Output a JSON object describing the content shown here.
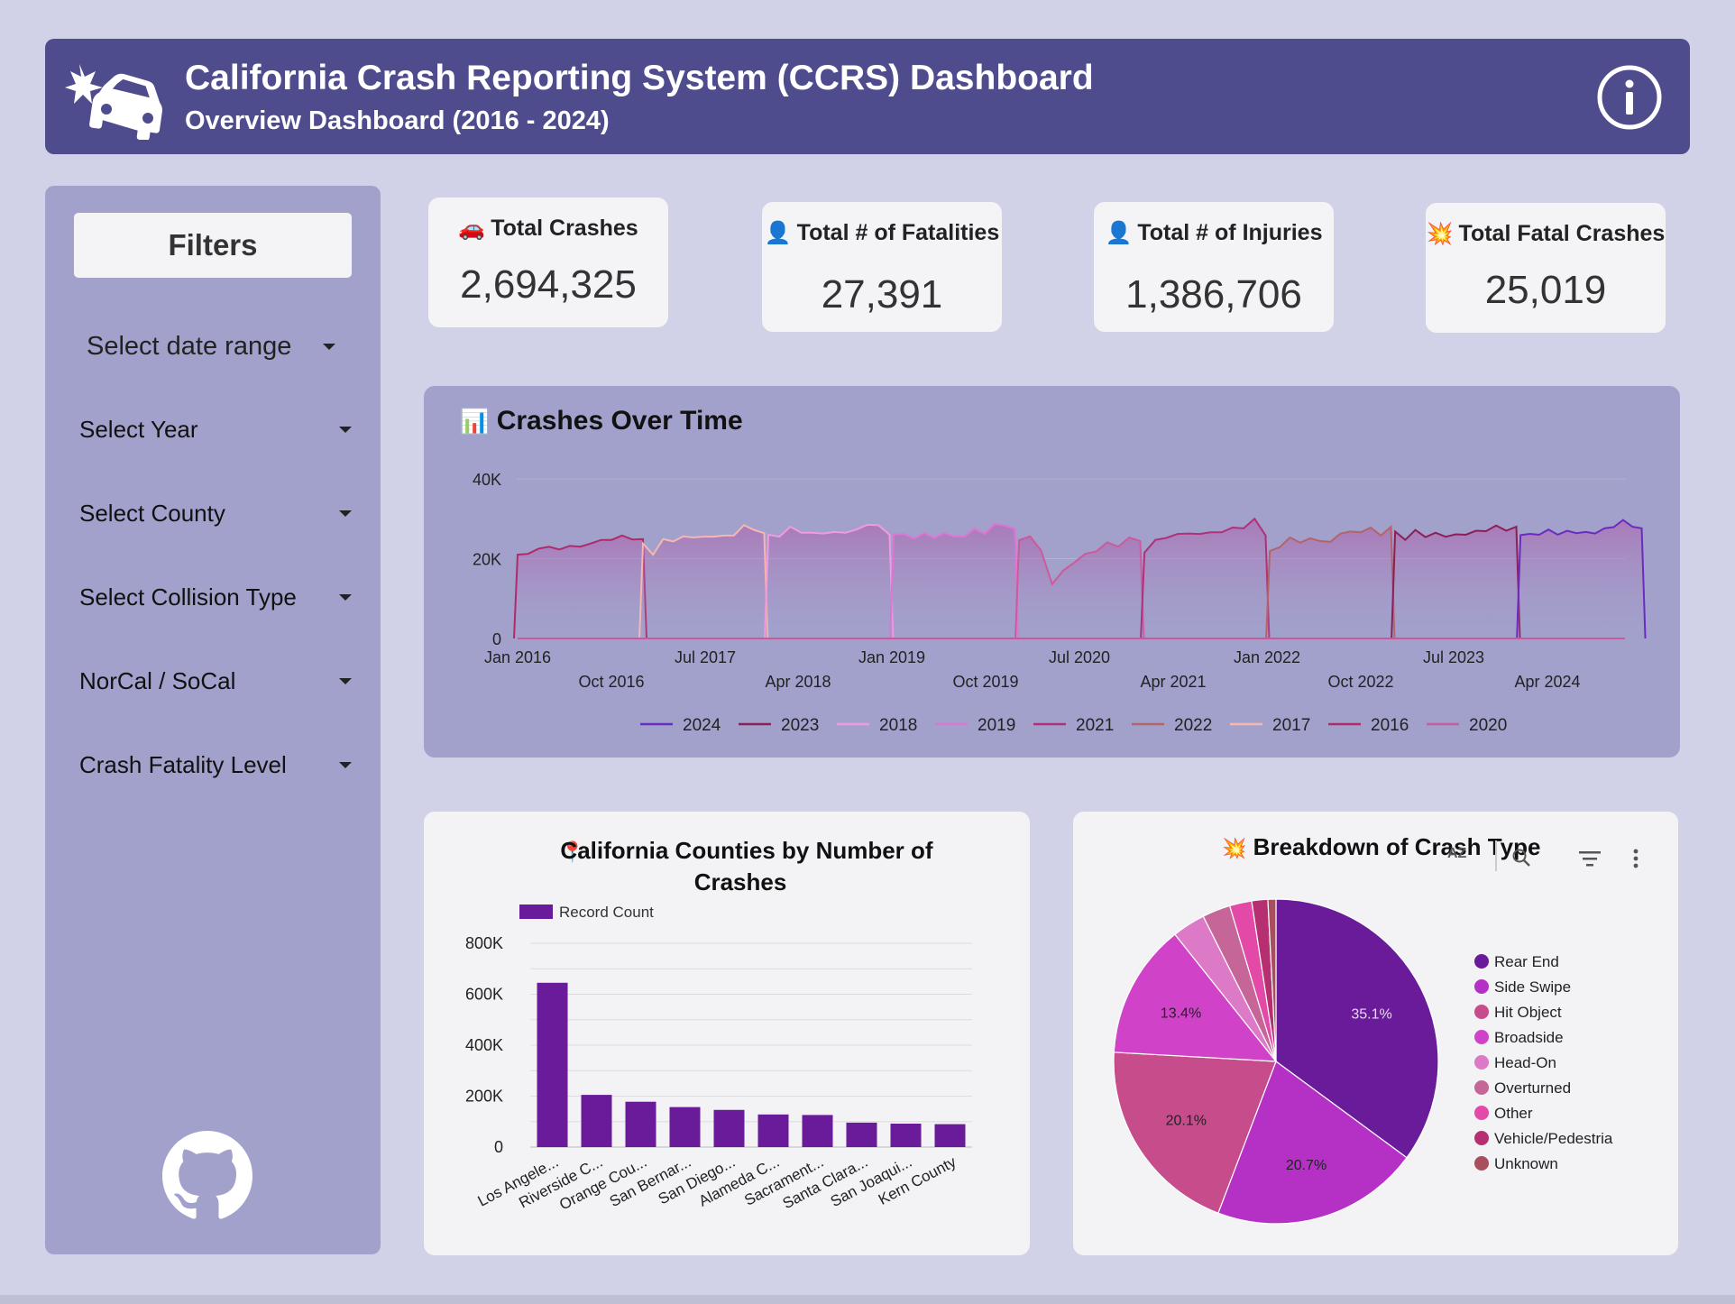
{
  "header": {
    "title": "California Crash Reporting System (CCRS) Dashboard",
    "subtitle": "Overview Dashboard (2016 - 2024)",
    "logo_icon": "car-crash-icon",
    "info_icon": "info-icon"
  },
  "sidebar": {
    "title": "Filters",
    "date_range": "Select date range",
    "filters": [
      "Select Year",
      "Select County",
      "Select Collision Type",
      "NorCal / SoCal",
      "Crash Fatality Level"
    ],
    "footer_icon": "github-icon"
  },
  "kpis": [
    {
      "emoji": "🚗",
      "label": "Total Crashes",
      "value": "2,694,325"
    },
    {
      "emoji": "👤",
      "label": "Total # of Fatalities",
      "value": "27,391"
    },
    {
      "emoji": "👤",
      "label": "Total # of Injuries",
      "value": "1,386,706"
    },
    {
      "emoji": "💥",
      "label": "Total Fatal Crashes",
      "value": "25,019"
    }
  ],
  "colors": {
    "header_bg": "#4f4c8e",
    "page_bg": "#d1d1e8",
    "panel_bg": "#a2a1cc",
    "bar": "#6a1b9a"
  },
  "chart_data": [
    {
      "type": "line",
      "title": "Crashes Over Time",
      "title_emoji": "📊",
      "ylim": [
        0,
        40000
      ],
      "y_ticks": [
        "0",
        "20K",
        "40K"
      ],
      "x_ticks_upper": [
        "Jan 2016",
        "Jul 2017",
        "Jan 2019",
        "Jul 2020",
        "Jan 2022",
        "Jul 2023"
      ],
      "x_ticks_lower": [
        "Oct 2016",
        "Apr 2018",
        "Oct 2019",
        "Apr 2021",
        "Oct 2022",
        "Apr 2024"
      ],
      "grid": true,
      "legend_position": "bottom",
      "series": [
        {
          "name": "2016",
          "color": "#b02a6a",
          "values": [
            21000,
            21200,
            22500,
            23000,
            22300,
            23200,
            23000,
            23800,
            24700,
            24700,
            25800,
            24800,
            24900
          ]
        },
        {
          "name": "2017",
          "color": "#f5b7b0",
          "values": [
            23800,
            21000,
            24900,
            24300,
            25600,
            25300,
            25500,
            25500,
            25800,
            25800,
            28400,
            27200,
            26400
          ]
        },
        {
          "name": "2018",
          "color": "#f09ae0",
          "values": [
            26000,
            25500,
            28000,
            26500,
            26500,
            26300,
            26700,
            26500,
            27300,
            28500,
            28400,
            26000
          ]
        },
        {
          "name": "2019",
          "color": "#de75d3",
          "values": [
            26000,
            26200,
            25000,
            26400,
            25200,
            26400,
            25500,
            25600,
            27500,
            26200,
            28700,
            28300,
            27500
          ]
        },
        {
          "name": "2020",
          "color": "#cc5a9c",
          "values": [
            24600,
            25600,
            22000,
            13600,
            17000,
            19000,
            21200,
            21800,
            24100,
            23000,
            25300,
            24400
          ]
        },
        {
          "name": "2021",
          "color": "#b0307a",
          "values": [
            21500,
            24700,
            25200,
            26200,
            26300,
            26200,
            26600,
            26600,
            27800,
            27600,
            30000,
            25800
          ]
        },
        {
          "name": "2022",
          "color": "#b26468",
          "values": [
            21900,
            22900,
            25300,
            24000,
            25100,
            24400,
            24200,
            26300,
            26800,
            26600,
            27800,
            25800,
            28000
          ]
        },
        {
          "name": "2023",
          "color": "#8c1f56",
          "values": [
            26800,
            24700,
            27200,
            25400,
            26500,
            25500,
            26100,
            26000,
            27000,
            26900,
            28300,
            27000,
            28000
          ]
        },
        {
          "name": "2024",
          "color": "#6a2cc0",
          "values": [
            25900,
            26200,
            26000,
            27300,
            26000,
            27000,
            26400,
            26700,
            26300,
            27600,
            27900,
            29700,
            28000,
            27600
          ]
        }
      ]
    },
    {
      "type": "bar",
      "title_emoji": "📍",
      "title_line1": "California Counties by Number of",
      "title_line2": "Crashes",
      "legend": "Record Count",
      "ylim": [
        0,
        800000
      ],
      "y_ticks": [
        "0",
        "200K",
        "400K",
        "600K",
        "800K"
      ],
      "categories": [
        "Los Angele...",
        "Riverside C...",
        "Orange Cou...",
        "San Bernar...",
        "San Diego...",
        "Alameda C...",
        "Sacrament...",
        "Santa Clara...",
        "San Joaqui...",
        "Kern County"
      ],
      "values": [
        645000,
        205000,
        178000,
        157000,
        146000,
        128000,
        126000,
        96000,
        92000,
        90000
      ]
    },
    {
      "type": "pie",
      "title_emoji": "💥",
      "title": "Breakdown of Crash Type",
      "legend_position": "right",
      "slices": [
        {
          "name": "Rear End",
          "value": 35.1,
          "label": "35.1%",
          "color": "#6a1b9a"
        },
        {
          "name": "Side Swipe",
          "value": 20.7,
          "label": "20.7%",
          "color": "#b530c4"
        },
        {
          "name": "Hit Object",
          "value": 20.1,
          "label": "20.1%",
          "color": "#c64c8c"
        },
        {
          "name": "Broadside",
          "value": 13.4,
          "label": "13.4%",
          "color": "#d043c8"
        },
        {
          "name": "Head-On",
          "value": 3.3,
          "label": "",
          "color": "#dd7ac7"
        },
        {
          "name": "Overturned",
          "value": 2.8,
          "label": "",
          "color": "#c66698"
        },
        {
          "name": "Other",
          "value": 2.2,
          "label": "",
          "color": "#e34aa8"
        },
        {
          "name": "Vehicle/Pedestria",
          "value": 1.6,
          "label": "",
          "color": "#b62f71"
        },
        {
          "name": "Unknown",
          "value": 0.8,
          "label": "",
          "color": "#a84e5d"
        }
      ],
      "toolbar": {
        "sort_label": "AZ",
        "icons": [
          "sort-icon",
          "zoom-icon",
          "filter-icon",
          "more-icon"
        ]
      }
    }
  ]
}
